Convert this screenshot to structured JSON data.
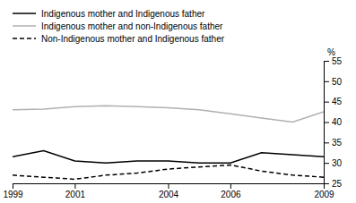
{
  "chart_data": {
    "type": "line",
    "x": [
      1999,
      2000,
      2001,
      2002,
      2003,
      2004,
      2005,
      2006,
      2007,
      2008,
      2009
    ],
    "series": [
      {
        "name": "Indigenous mother and Indigenous father",
        "color": "#000000",
        "line_style": "solid",
        "values": [
          31.5,
          33.0,
          30.5,
          30.0,
          30.5,
          30.5,
          30.0,
          30.0,
          32.5,
          32.0,
          31.5
        ]
      },
      {
        "name": "Indigenous mother and non-Indigenous father",
        "color": "#b0b0b0",
        "line_style": "solid",
        "values": [
          43.0,
          43.2,
          43.8,
          44.0,
          43.8,
          43.5,
          43.0,
          42.0,
          41.0,
          40.0,
          42.5
        ]
      },
      {
        "name": "Non-Indigenous mother and Indigenous father",
        "color": "#000000",
        "line_style": "dashed",
        "values": [
          27.0,
          26.5,
          26.0,
          27.0,
          27.5,
          28.5,
          29.0,
          29.5,
          28.0,
          27.0,
          26.5
        ]
      }
    ],
    "y_label": "%",
    "xlim": [
      1999,
      2009
    ],
    "xticks": [
      1999,
      2001,
      2004,
      2006,
      2009
    ],
    "ylim": [
      25,
      55
    ],
    "yticks": [
      25,
      30,
      35,
      40,
      45,
      50,
      55
    ],
    "legend": "top",
    "grid": false
  }
}
